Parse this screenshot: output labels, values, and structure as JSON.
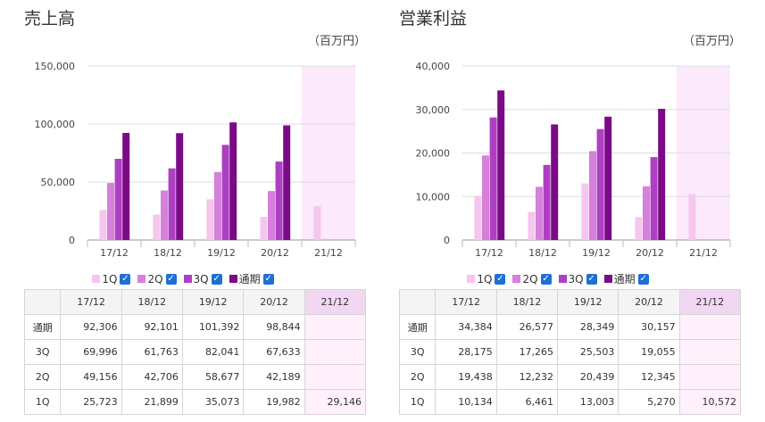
{
  "colors": {
    "q1": "#f5c6ee",
    "q2": "#d67fdb",
    "q3": "#ae3fc2",
    "full": "#7b0a86",
    "highlight": "#fce9fb",
    "check": "#1e6fd6"
  },
  "table_columns": [
    "17/12",
    "18/12",
    "19/12",
    "20/12",
    "21/12"
  ],
  "row_labels": [
    "通期",
    "3Q",
    "2Q",
    "1Q"
  ],
  "legend": [
    {
      "label": "1Q",
      "checked": true
    },
    {
      "label": "2Q",
      "checked": true
    },
    {
      "label": "3Q",
      "checked": true
    },
    {
      "label": "通期",
      "checked": true
    }
  ],
  "check_glyph": "✓",
  "chart_data": [
    {
      "type": "bar",
      "title": "売上高",
      "unit": "（百万円）",
      "categories": [
        "17/12",
        "18/12",
        "19/12",
        "20/12",
        "21/12"
      ],
      "highlight_category": "21/12",
      "ylim": [
        0,
        150000
      ],
      "yticks": [
        "0",
        "50,000",
        "100,000",
        "150,000"
      ],
      "grid": true,
      "legend_position": "bottom",
      "series": [
        {
          "name": "1Q",
          "values": [
            25723,
            21899,
            35073,
            19982,
            29146
          ]
        },
        {
          "name": "2Q",
          "values": [
            49156,
            42706,
            58677,
            42189,
            null
          ]
        },
        {
          "name": "3Q",
          "values": [
            69996,
            61763,
            82041,
            67633,
            null
          ]
        },
        {
          "name": "通期",
          "values": [
            92306,
            92101,
            101392,
            98844,
            null
          ]
        }
      ],
      "table": [
        [
          "92,306",
          "92,101",
          "101,392",
          "98,844",
          ""
        ],
        [
          "69,996",
          "61,763",
          "82,041",
          "67,633",
          ""
        ],
        [
          "49,156",
          "42,706",
          "58,677",
          "42,189",
          ""
        ],
        [
          "25,723",
          "21,899",
          "35,073",
          "19,982",
          "29,146"
        ]
      ]
    },
    {
      "type": "bar",
      "title": "営業利益",
      "unit": "（百万円）",
      "categories": [
        "17/12",
        "18/12",
        "19/12",
        "20/12",
        "21/12"
      ],
      "highlight_category": "21/12",
      "ylim": [
        0,
        40000
      ],
      "yticks": [
        "0",
        "10,000",
        "20,000",
        "30,000",
        "40,000"
      ],
      "grid": true,
      "legend_position": "bottom",
      "series": [
        {
          "name": "1Q",
          "values": [
            10134,
            6461,
            13003,
            5270,
            10572
          ]
        },
        {
          "name": "2Q",
          "values": [
            19438,
            12232,
            20439,
            12345,
            null
          ]
        },
        {
          "name": "3Q",
          "values": [
            28175,
            17265,
            25503,
            19055,
            null
          ]
        },
        {
          "name": "通期",
          "values": [
            34384,
            26577,
            28349,
            30157,
            null
          ]
        }
      ],
      "table": [
        [
          "34,384",
          "26,577",
          "28,349",
          "30,157",
          ""
        ],
        [
          "28,175",
          "17,265",
          "25,503",
          "19,055",
          ""
        ],
        [
          "19,438",
          "12,232",
          "20,439",
          "12,345",
          ""
        ],
        [
          "10,134",
          "6,461",
          "13,003",
          "5,270",
          "10,572"
        ]
      ]
    }
  ]
}
